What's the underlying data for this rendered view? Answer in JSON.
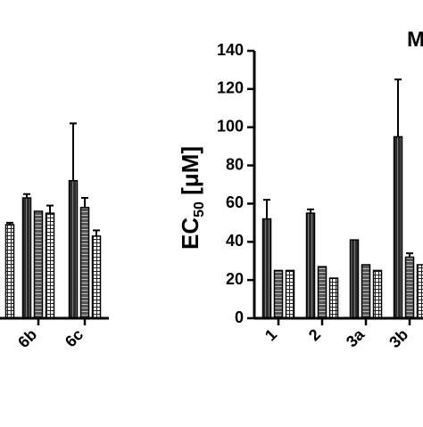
{
  "chart_data": [
    {
      "type": "bar",
      "panel": "left",
      "categories": [
        "",
        "6b",
        "6c"
      ],
      "series": [
        {
          "values": [
            null,
            63,
            72
          ],
          "errors": [
            null,
            2,
            30
          ]
        },
        {
          "values": [
            null,
            56,
            58
          ],
          "errors": [
            null,
            0,
            5
          ]
        },
        {
          "values": [
            49,
            55,
            43
          ],
          "errors": [
            1,
            4,
            3
          ]
        }
      ]
    },
    {
      "type": "bar",
      "panel": "right",
      "title": "M",
      "ylabel_main": "EC",
      "ylabel_sub": "50",
      "ylabel_unit": " [μM]",
      "ylim": [
        0,
        140
      ],
      "yticks": [
        0,
        20,
        40,
        60,
        80,
        100,
        120,
        140
      ],
      "categories": [
        "1",
        "2",
        "3a",
        "3b"
      ],
      "series": [
        {
          "values": [
            52,
            55,
            41,
            95
          ],
          "errors": [
            10,
            2,
            0,
            30
          ]
        },
        {
          "values": [
            25,
            27,
            28,
            32
          ],
          "errors": [
            0,
            0,
            0,
            2
          ]
        },
        {
          "values": [
            25,
            21,
            25,
            28
          ],
          "errors": [
            0,
            0,
            0,
            0
          ]
        }
      ]
    }
  ]
}
